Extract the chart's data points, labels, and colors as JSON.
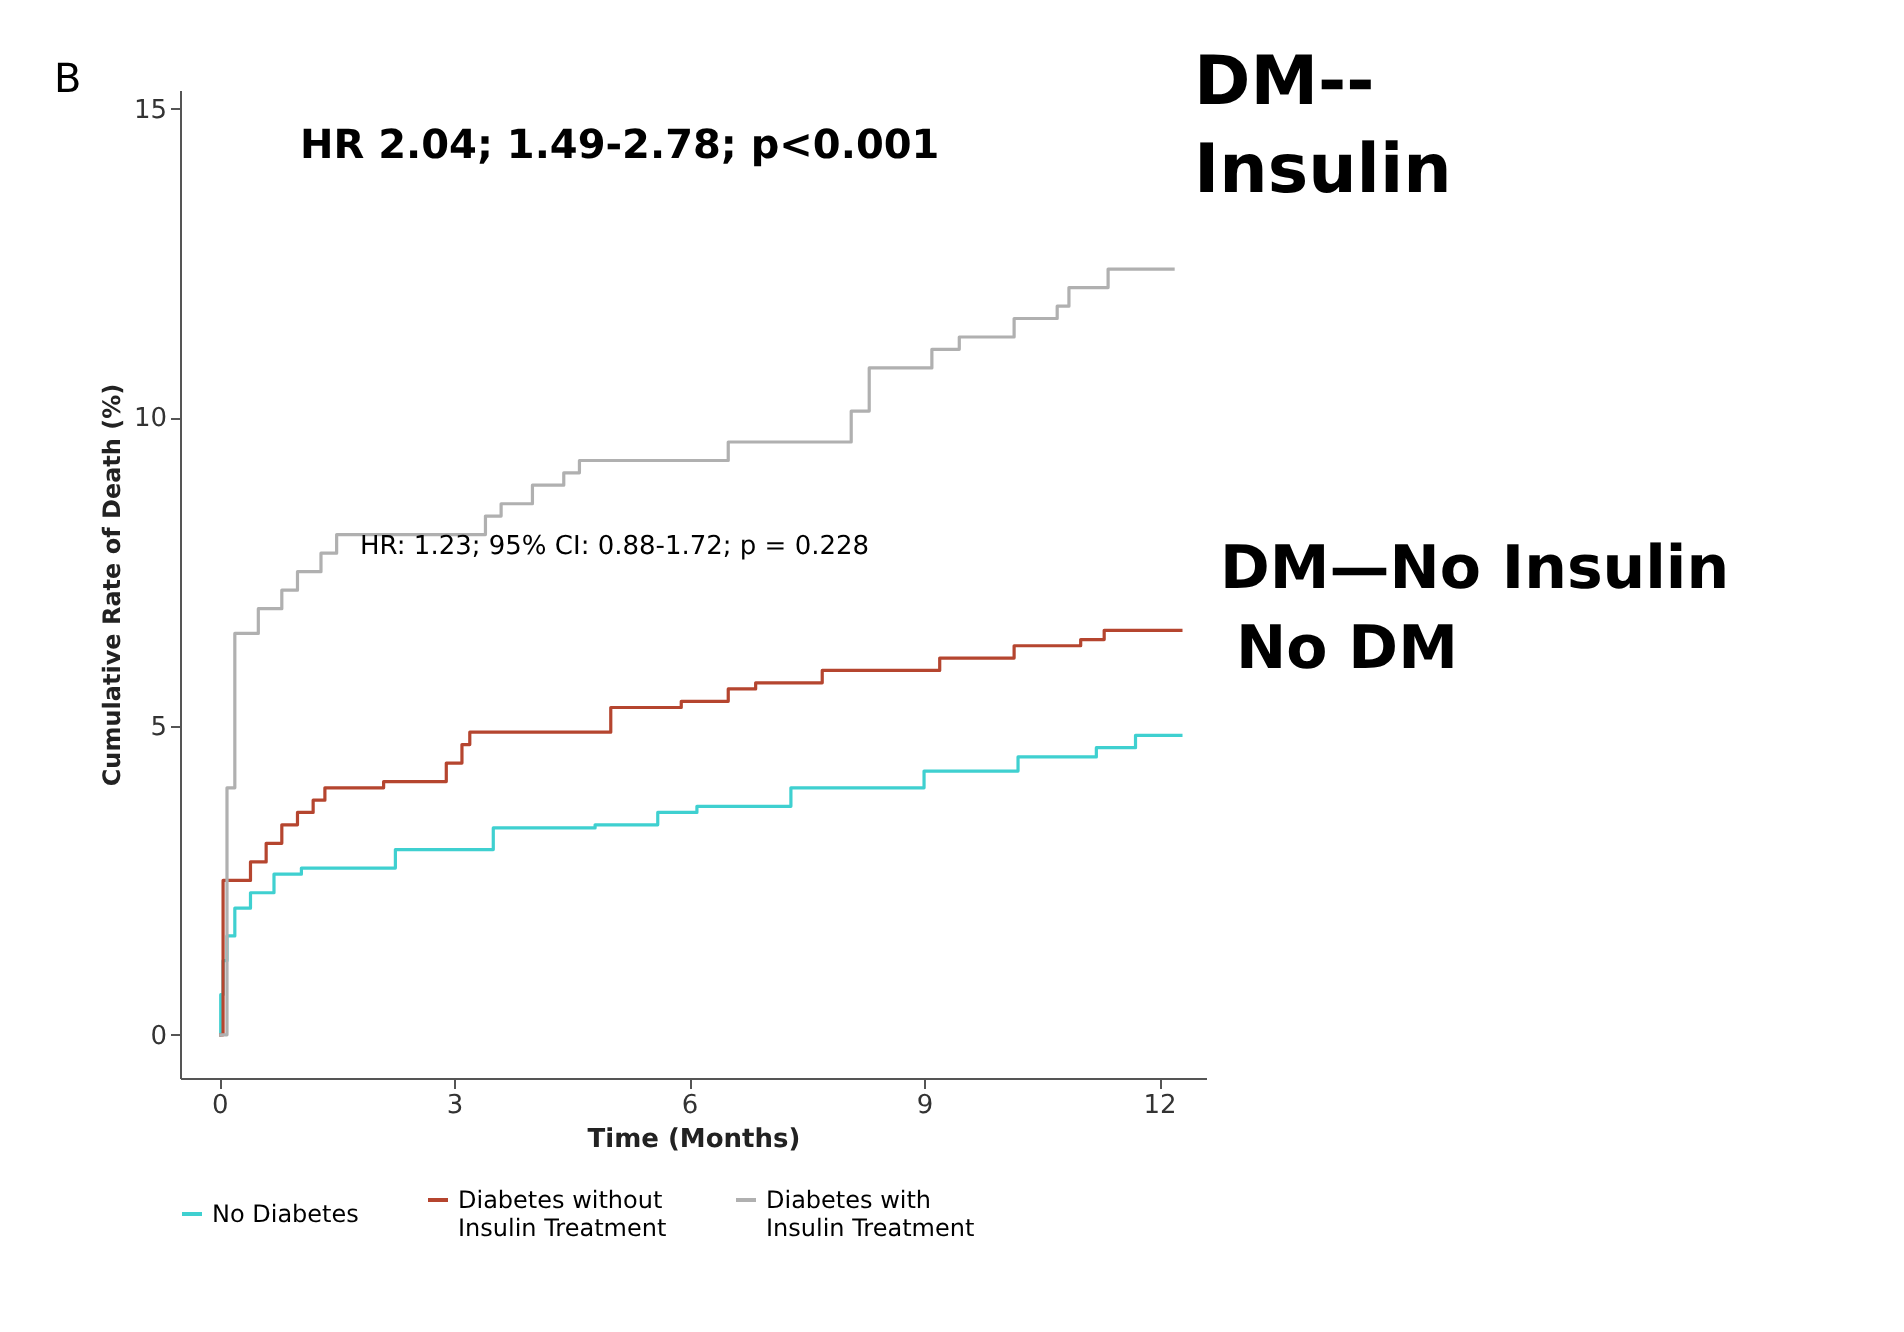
{
  "chart_data": {
    "type": "step",
    "xlabel": "Time (Months)",
    "ylabel": "Cumulative Rate of Death (%)",
    "xlim": [
      -0.5,
      12.6
    ],
    "ylim": [
      -0.7,
      15.3
    ],
    "xticks": [
      0,
      3,
      6,
      9,
      12
    ],
    "yticks": [
      0,
      5,
      10,
      15
    ],
    "grid": false,
    "legend": "bottom",
    "line_style": "solid",
    "marker": "none",
    "annotations": [
      "B",
      "HR 2.04; 1.49-2.78; p<0.001",
      "HR: 1.23; 95% CI: 0.88-1.72; p = 0.228",
      "DM--\nInsulin",
      "DM—No Insulin",
      "No DM"
    ],
    "series": [
      {
        "name": "No Diabetes",
        "color": "#3fd0d0",
        "x": [
          0,
          0.02,
          0.05,
          0.1,
          0.2,
          0.4,
          0.7,
          1.05,
          2.25,
          3.5,
          4.8,
          5.6,
          6.1,
          7.3,
          9.0,
          10.2,
          11.2,
          11.7,
          12.3
        ],
        "values": [
          0,
          0.65,
          1.2,
          1.6,
          2.05,
          2.3,
          2.6,
          2.7,
          3.0,
          3.35,
          3.4,
          3.6,
          3.7,
          4.0,
          4.27,
          4.5,
          4.65,
          4.85,
          4.85
        ]
      },
      {
        "name": "Diabetes without\nInsulin Treatment",
        "color": "#b5452f",
        "x": [
          0,
          0.05,
          0.4,
          0.6,
          0.8,
          1.0,
          1.2,
          1.35,
          2.1,
          2.9,
          3.1,
          3.2,
          5.0,
          5.9,
          6.5,
          6.85,
          7.7,
          9.2,
          10.15,
          11.0,
          11.3,
          12.3
        ],
        "values": [
          0,
          2.5,
          2.8,
          3.1,
          3.4,
          3.6,
          3.8,
          4.0,
          4.1,
          4.4,
          4.7,
          4.9,
          5.3,
          5.4,
          5.6,
          5.7,
          5.9,
          6.1,
          6.3,
          6.4,
          6.55,
          6.55
        ]
      },
      {
        "name": "Diabetes with\nInsulin Treatment",
        "color": "#b0b0b0",
        "x": [
          0,
          0.1,
          0.2,
          0.5,
          0.8,
          1.0,
          1.3,
          1.5,
          3.4,
          3.6,
          4.0,
          4.4,
          4.6,
          6.5,
          8.07,
          8.3,
          9.1,
          9.45,
          10.15,
          10.7,
          10.85,
          11.35,
          12.2
        ],
        "values": [
          0,
          4.0,
          6.5,
          6.9,
          7.2,
          7.5,
          7.8,
          8.1,
          8.4,
          8.6,
          8.9,
          9.1,
          9.3,
          9.6,
          10.1,
          10.8,
          11.1,
          11.3,
          11.6,
          11.8,
          12.1,
          12.4,
          12.4
        ]
      }
    ]
  }
}
